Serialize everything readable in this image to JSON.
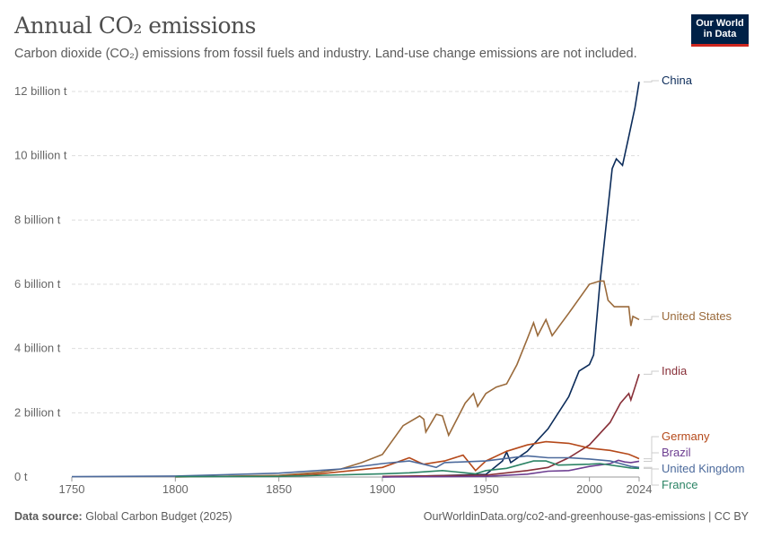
{
  "header": {
    "title": "Annual CO₂ emissions",
    "subtitle": "Carbon dioxide (CO₂) emissions from fossil fuels and industry. Land-use change emissions are not included.",
    "logo_text": "Our World in Data"
  },
  "footer": {
    "source_label": "Data source:",
    "source": "Global Carbon Budget (2025)",
    "url": "OurWorldinData.org/co2-and-greenhouse-gas-emissions | CC BY"
  },
  "chart_data": {
    "type": "line",
    "title": "Annual CO₂ emissions",
    "xlim": [
      1750,
      2024
    ],
    "ylim": [
      0,
      12
    ],
    "grid": true,
    "legend_placement": "right (line-end labels)",
    "x_ticks": [
      "1750",
      "1800",
      "1850",
      "1900",
      "1950",
      "2000",
      "2024"
    ],
    "x_tick_values": [
      1750,
      1800,
      1850,
      1900,
      1950,
      2000,
      2024
    ],
    "y_ticks": [
      "0 t",
      "2 billion t",
      "4 billion t",
      "6 billion t",
      "8 billion t",
      "10 billion t",
      "12 billion t"
    ],
    "y_tick_values": [
      0,
      2,
      4,
      6,
      8,
      10,
      12
    ],
    "y_unit": "billion t",
    "series": [
      {
        "name": "China",
        "color": "#0c2c5a",
        "x": [
          1900,
          1950,
          1958,
          1960,
          1962,
          1970,
          1980,
          1990,
          1995,
          2000,
          2002,
          2005,
          2010,
          2011,
          2013,
          2016,
          2019,
          2020,
          2022,
          2024
        ],
        "y": [
          0,
          0.08,
          0.5,
          0.78,
          0.45,
          0.8,
          1.5,
          2.5,
          3.3,
          3.5,
          3.8,
          6.0,
          9.0,
          9.6,
          9.9,
          9.7,
          10.6,
          10.9,
          11.5,
          12.3
        ]
      },
      {
        "name": "United States",
        "color": "#9a6a3b",
        "x": [
          1800,
          1850,
          1870,
          1880,
          1890,
          1900,
          1910,
          1918,
          1920,
          1921,
          1926,
          1929,
          1932,
          1940,
          1944,
          1946,
          1950,
          1955,
          1960,
          1965,
          1970,
          1973,
          1975,
          1979,
          1982,
          1990,
          2000,
          2005,
          2007,
          2009,
          2012,
          2019,
          2020,
          2021,
          2024
        ],
        "y": [
          0,
          0.05,
          0.15,
          0.25,
          0.45,
          0.7,
          1.6,
          1.9,
          1.8,
          1.4,
          1.95,
          1.9,
          1.3,
          2.3,
          2.6,
          2.2,
          2.6,
          2.8,
          2.9,
          3.5,
          4.3,
          4.8,
          4.4,
          4.9,
          4.4,
          5.1,
          6.0,
          6.1,
          6.1,
          5.5,
          5.3,
          5.3,
          4.7,
          5.0,
          4.9
        ]
      },
      {
        "name": "India",
        "color": "#883039",
        "x": [
          1900,
          1950,
          1970,
          1980,
          1990,
          2000,
          2010,
          2015,
          2019,
          2020,
          2022,
          2024
        ],
        "y": [
          0.02,
          0.06,
          0.2,
          0.3,
          0.6,
          1.0,
          1.7,
          2.3,
          2.6,
          2.4,
          2.8,
          3.2
        ]
      },
      {
        "name": "Germany",
        "color": "#b5491a",
        "x": [
          1850,
          1870,
          1900,
          1913,
          1918,
          1920,
          1930,
          1939,
          1945,
          1950,
          1960,
          1970,
          1979,
          1990,
          2000,
          2010,
          2019,
          2023,
          2024
        ],
        "y": [
          0.02,
          0.1,
          0.3,
          0.6,
          0.45,
          0.4,
          0.5,
          0.68,
          0.2,
          0.5,
          0.8,
          1.0,
          1.1,
          1.05,
          0.9,
          0.83,
          0.71,
          0.6,
          0.57
        ]
      },
      {
        "name": "Brazil",
        "color": "#6d3e91",
        "x": [
          1900,
          1950,
          1970,
          1980,
          1990,
          2000,
          2010,
          2014,
          2017,
          2020,
          2024
        ],
        "y": [
          0,
          0.02,
          0.09,
          0.18,
          0.2,
          0.33,
          0.42,
          0.52,
          0.47,
          0.45,
          0.49
        ]
      },
      {
        "name": "United Kingdom",
        "color": "#4c6a9c",
        "x": [
          1750,
          1800,
          1850,
          1880,
          1900,
          1913,
          1921,
          1926,
          1930,
          1950,
          1960,
          1970,
          1980,
          1990,
          2000,
          2010,
          2015,
          2020,
          2024
        ],
        "y": [
          0.01,
          0.03,
          0.12,
          0.25,
          0.42,
          0.5,
          0.38,
          0.3,
          0.45,
          0.5,
          0.58,
          0.66,
          0.6,
          0.6,
          0.56,
          0.5,
          0.42,
          0.33,
          0.3
        ]
      },
      {
        "name": "France",
        "color": "#2c8465",
        "x": [
          1800,
          1850,
          1900,
          1913,
          1929,
          1945,
          1950,
          1960,
          1973,
          1979,
          1985,
          2000,
          2005,
          2015,
          2020,
          2024
        ],
        "y": [
          0.01,
          0.02,
          0.1,
          0.13,
          0.2,
          0.1,
          0.2,
          0.27,
          0.5,
          0.5,
          0.37,
          0.4,
          0.42,
          0.33,
          0.28,
          0.27
        ]
      }
    ]
  }
}
